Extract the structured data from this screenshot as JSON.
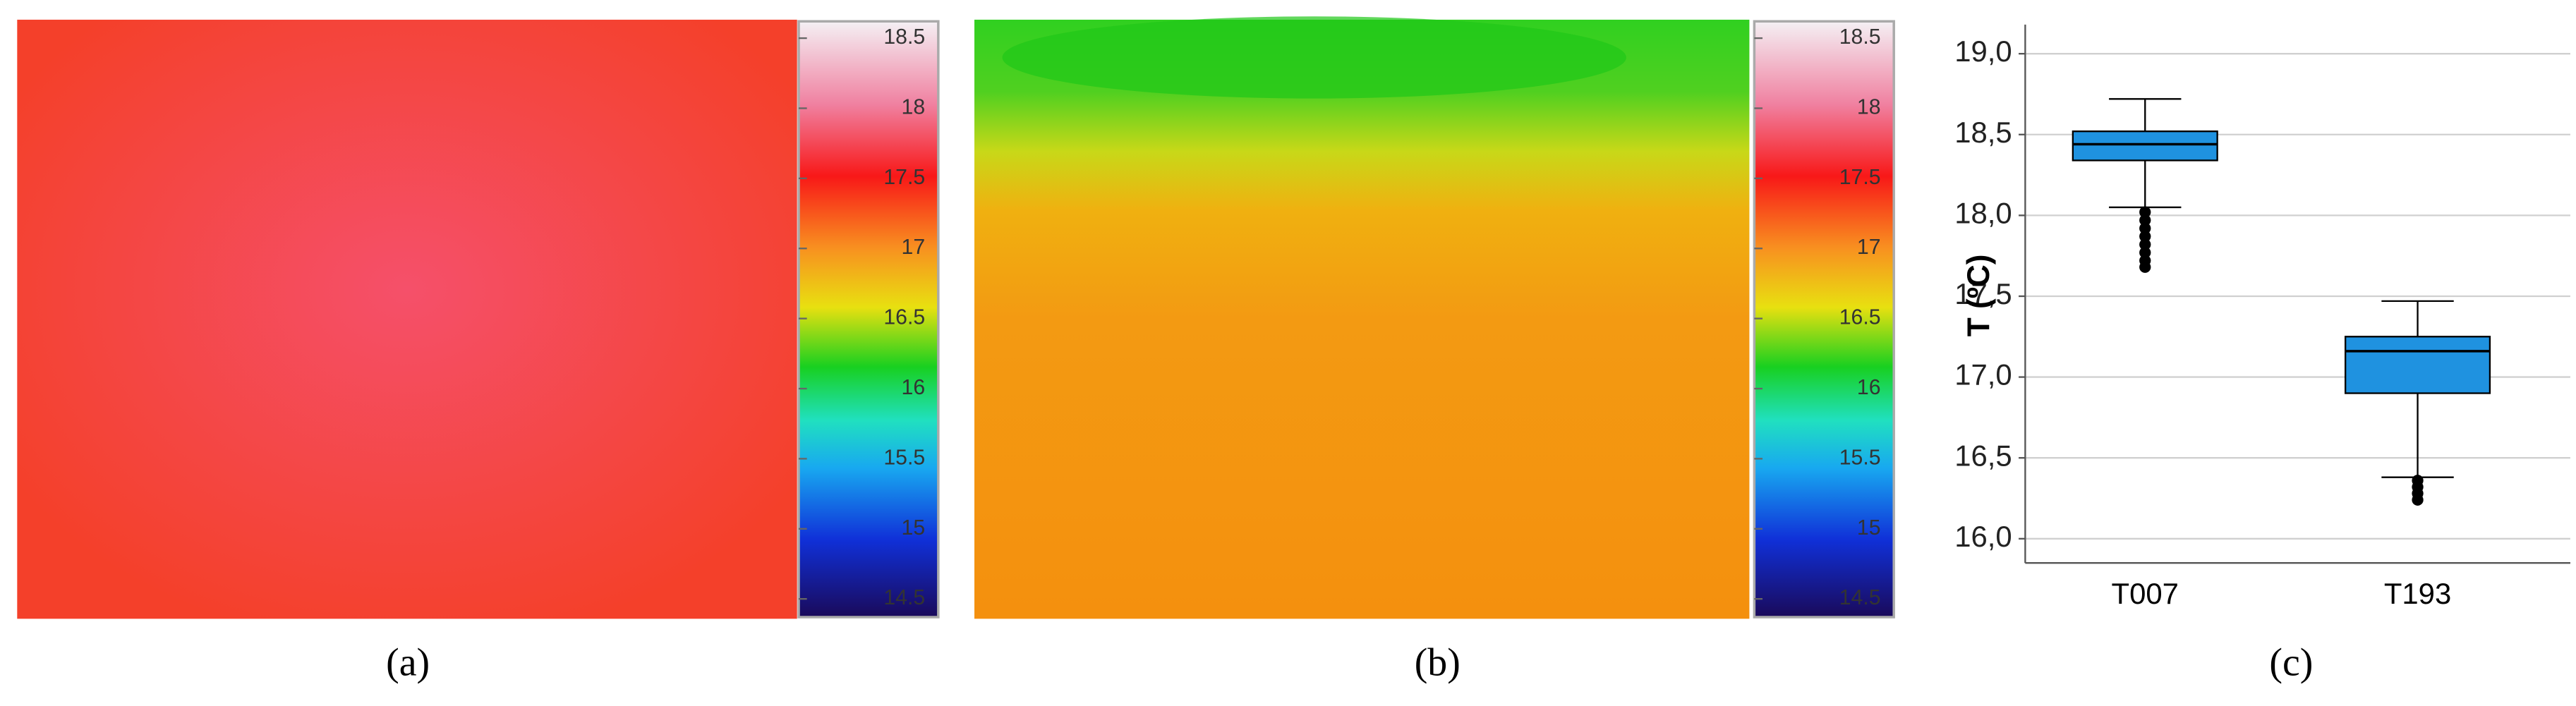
{
  "chart_data": [
    {
      "type": "heatmap",
      "caption": "(a)",
      "clim": [
        14.37,
        18.62
      ],
      "cticks": [
        14.5,
        15,
        15.5,
        16,
        16.5,
        17,
        17.5,
        18,
        18.5
      ]
    },
    {
      "type": "heatmap",
      "caption": "(b)",
      "clim": [
        14.37,
        18.62
      ],
      "cticks": [
        14.5,
        15,
        15.5,
        16,
        16.5,
        17,
        17.5,
        18,
        18.5
      ]
    },
    {
      "type": "box",
      "caption": "(c)",
      "ylabel": "T (ºC)",
      "color": "#1f92e0",
      "grid": true,
      "categories": [
        "T007",
        "T193"
      ],
      "boxes": [
        {
          "whislo": 18.05,
          "q1": 18.34,
          "med": 18.44,
          "q3": 18.52,
          "whishi": 18.72,
          "fliers": [
            18.02,
            17.97,
            17.92,
            17.87,
            17.82,
            17.77,
            17.72,
            17.68
          ]
        },
        {
          "whislo": 16.38,
          "q1": 16.9,
          "med": 17.16,
          "q3": 17.25,
          "whishi": 17.47,
          "fliers": [
            16.36,
            16.32,
            16.28,
            16.24
          ]
        }
      ],
      "ylim": [
        15.85,
        19.18
      ],
      "yticks": [
        {
          "value": 16,
          "label": "16,0"
        },
        {
          "value": 16.5,
          "label": "16,5"
        },
        {
          "value": 17,
          "label": "17,0"
        },
        {
          "value": 17.5,
          "label": "17,5"
        },
        {
          "value": 18,
          "label": "18,0"
        },
        {
          "value": 18.5,
          "label": "18,5"
        },
        {
          "value": 19,
          "label": "19,0"
        }
      ]
    }
  ]
}
